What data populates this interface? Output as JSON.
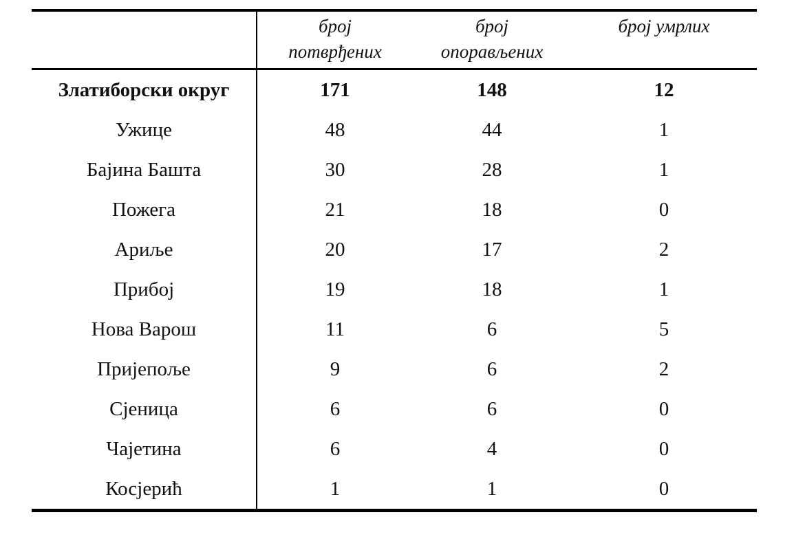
{
  "table": {
    "headers": {
      "name": "",
      "confirmed_line1": "број",
      "confirmed_line2": "потврђених",
      "recovered_line1": "број",
      "recovered_line2": "опорављених",
      "deaths_line1": "број умрлих"
    },
    "rows": [
      {
        "name": "Златиборски округ",
        "confirmed": "171",
        "recovered": "148",
        "deaths": "12"
      },
      {
        "name": "Ужице",
        "confirmed": "48",
        "recovered": "44",
        "deaths": "1"
      },
      {
        "name": "Бајина Башта",
        "confirmed": "30",
        "recovered": "28",
        "deaths": "1"
      },
      {
        "name": "Пожега",
        "confirmed": "21",
        "recovered": "18",
        "deaths": "0"
      },
      {
        "name": "Ариље",
        "confirmed": "20",
        "recovered": "17",
        "deaths": "2"
      },
      {
        "name": "Прибој",
        "confirmed": "19",
        "recovered": "18",
        "deaths": "1"
      },
      {
        "name": "Нова Варош",
        "confirmed": "11",
        "recovered": "6",
        "deaths": "5"
      },
      {
        "name": "Пријепоље",
        "confirmed": "9",
        "recovered": "6",
        "deaths": "2"
      },
      {
        "name": "Сјеница",
        "confirmed": "6",
        "recovered": "6",
        "deaths": "0"
      },
      {
        "name": "Чајетина",
        "confirmed": "6",
        "recovered": "4",
        "deaths": "0"
      },
      {
        "name": "Косјерић",
        "confirmed": "1",
        "recovered": "1",
        "deaths": "0"
      }
    ],
    "colors": {
      "border": "#000000",
      "text": "#111111",
      "background": "#ffffff"
    }
  }
}
